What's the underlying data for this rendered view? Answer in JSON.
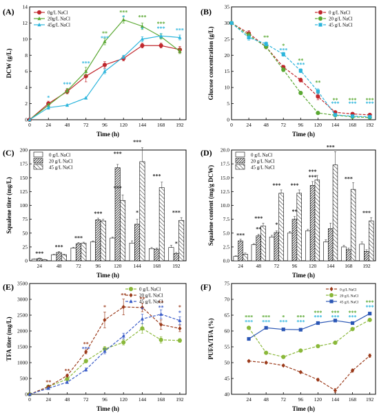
{
  "chart_data": [
    {
      "panel": "(A)",
      "type": "line",
      "xlabel": "Time (h)",
      "ylabel": "DCW (g/L)",
      "x": [
        0,
        24,
        48,
        72,
        96,
        120,
        144,
        168,
        192
      ],
      "xlim": [
        0,
        200
      ],
      "ylim": [
        0,
        14
      ],
      "yticks": [
        0,
        2,
        4,
        6,
        8,
        10,
        12,
        14
      ],
      "legend_position": "top-left",
      "series": [
        {
          "name": "0g/L NaCl",
          "color": "#c0272d",
          "marker": "circle",
          "values": [
            0,
            2.0,
            3.5,
            5.4,
            6.8,
            7.6,
            9.2,
            9.2,
            8.7
          ],
          "err": [
            0,
            0.3,
            0.3,
            0.7,
            0.4,
            0.3,
            0.3,
            0.3,
            0.4
          ]
        },
        {
          "name": "20g/L NaCl",
          "color": "#5aa832",
          "marker": "triangle",
          "values": [
            0,
            1.8,
            3.6,
            6.0,
            9.7,
            12.4,
            11.6,
            10.3,
            8.5
          ],
          "err": [
            0,
            0.2,
            0.3,
            0.5,
            0.4,
            0.4,
            0.4,
            0.3,
            0.3
          ]
        },
        {
          "name": "45g/L NaCl",
          "color": "#2cb5dc",
          "marker": "triangle",
          "values": [
            0,
            1.5,
            1.8,
            2.7,
            6.0,
            7.8,
            10.0,
            10.4,
            10.2
          ],
          "err": [
            0,
            0.2,
            0.1,
            0.1,
            0.3,
            0.2,
            0.3,
            0.3,
            0.3
          ]
        }
      ],
      "annotations": [
        {
          "x": 24,
          "y": 2.5,
          "text": "*",
          "color": "#2cb5dc"
        },
        {
          "x": 48,
          "y": 4.2,
          "text": "***",
          "color": "#2cb5dc"
        },
        {
          "x": 72,
          "y": 6.8,
          "text": "***",
          "color": "#2cb5dc"
        },
        {
          "x": 96,
          "y": 10.5,
          "text": "**",
          "color": "#5aa832"
        },
        {
          "x": 96,
          "y": 9.9,
          "text": "***",
          "color": "#2cb5dc"
        },
        {
          "x": 120,
          "y": 13.1,
          "text": "***",
          "color": "#5aa832"
        },
        {
          "x": 120,
          "y": 12.5,
          "text": "*",
          "color": "#2cb5dc"
        },
        {
          "x": 144,
          "y": 12.5,
          "text": "***",
          "color": "#5aa832"
        },
        {
          "x": 144,
          "y": 11.0,
          "text": "*",
          "color": "#2cb5dc"
        },
        {
          "x": 168,
          "y": 11.7,
          "text": "***",
          "color": "#5aa832"
        },
        {
          "x": 168,
          "y": 11.1,
          "text": "***",
          "color": "#2cb5dc"
        },
        {
          "x": 192,
          "y": 10.9,
          "text": "***",
          "color": "#2cb5dc"
        }
      ]
    },
    {
      "panel": "(B)",
      "type": "line",
      "xlabel": "Time (h)",
      "ylabel": "Glucose concentration (g/L)",
      "x": [
        0,
        24,
        48,
        72,
        96,
        120,
        144,
        168,
        192
      ],
      "xlim": [
        0,
        200
      ],
      "ylim": [
        0,
        35
      ],
      "yticks": [
        0,
        5,
        10,
        15,
        20,
        25,
        30,
        35
      ],
      "legend_position": "top-right",
      "series": [
        {
          "name": "0 g/L NaCl",
          "color": "#c0272d",
          "marker": "circle",
          "dashed": true,
          "values": [
            30,
            26.8,
            22.6,
            16.3,
            12.3,
            7.2,
            2.3,
            1.8,
            1.5
          ],
          "err": [
            0,
            0.8,
            0.6,
            0.6,
            0.6,
            1.0,
            0.3,
            0.3,
            0.2
          ]
        },
        {
          "name": "20 g/L NaCl",
          "color": "#5aa832",
          "marker": "circle",
          "dashed": true,
          "values": [
            30,
            26.2,
            22.6,
            15.5,
            8.3,
            2.1,
            1.4,
            0.9,
            0.7
          ],
          "err": [
            0,
            0.8,
            0.6,
            0.6,
            0.5,
            0.3,
            0.2,
            0.2,
            0.2
          ]
        },
        {
          "name": "45 g/L NaCl",
          "color": "#2cb5dc",
          "marker": "square",
          "dashed": true,
          "values": [
            30,
            25.5,
            23.5,
            20.3,
            15.2,
            8.8,
            1.5,
            1.1,
            0.9
          ],
          "err": [
            0,
            0.8,
            0.6,
            0.6,
            0.6,
            0.8,
            0.2,
            0.2,
            0.2
          ]
        }
      ],
      "annotations": [
        {
          "x": 48,
          "y": 25.0,
          "text": "**",
          "color": "#5aa832"
        },
        {
          "x": 72,
          "y": 21.0,
          "text": "***",
          "color": "#2cb5dc"
        },
        {
          "x": 72,
          "y": 22.4,
          "text": "*",
          "color": "#5aa832"
        },
        {
          "x": 96,
          "y": 16.5,
          "text": "***",
          "color": "#2cb5dc"
        },
        {
          "x": 96,
          "y": 17.8,
          "text": "**",
          "color": "#5aa832"
        },
        {
          "x": 120,
          "y": 11.0,
          "text": "**",
          "color": "#5aa832"
        },
        {
          "x": 144,
          "y": 5.5,
          "text": "**",
          "color": "#5aa832"
        },
        {
          "x": 144,
          "y": 4.5,
          "text": "***",
          "color": "#2cb5dc"
        },
        {
          "x": 168,
          "y": 5.5,
          "text": "***",
          "color": "#5aa832"
        },
        {
          "x": 168,
          "y": 4.5,
          "text": "***",
          "color": "#2cb5dc"
        },
        {
          "x": 192,
          "y": 5.5,
          "text": "***",
          "color": "#5aa832"
        },
        {
          "x": 192,
          "y": 4.5,
          "text": "***",
          "color": "#2cb5dc"
        }
      ]
    },
    {
      "panel": "(C)",
      "type": "bar",
      "xlabel": "Time (h)",
      "ylabel": "Squalene titer (mg/L)",
      "categories": [
        "24",
        "48",
        "72",
        "96",
        "120",
        "144",
        "168",
        "192"
      ],
      "ylim": [
        0,
        200
      ],
      "yticks": [
        0,
        25,
        50,
        75,
        100,
        125,
        150,
        175,
        200
      ],
      "legend_position": "top-left",
      "series": [
        {
          "name": "0 g/L NaCl",
          "pattern": "white",
          "values": [
            3,
            11,
            23,
            34,
            41,
            32,
            22,
            24
          ],
          "err": [
            0.5,
            1,
            1.5,
            2,
            2,
            4,
            2,
            4
          ]
        },
        {
          "name": "20 g/L NaCl",
          "pattern": "dense",
          "values": [
            4,
            15,
            31,
            74,
            168,
            66,
            21,
            13
          ],
          "err": [
            1,
            1.5,
            2,
            3,
            6,
            9,
            2,
            2
          ]
        },
        {
          "name": "45 g/L NaCl",
          "pattern": "hatch",
          "values": [
            2,
            11,
            32,
            72,
            109,
            179,
            132,
            73
          ],
          "err": [
            0.5,
            1,
            1.5,
            3,
            10,
            25,
            10,
            5
          ]
        }
      ],
      "annotations": [
        {
          "cat": 0,
          "y": 10,
          "text": "***"
        },
        {
          "cat": 1,
          "y": 22,
          "text": "***"
        },
        {
          "cat": 2,
          "y": 38,
          "text": "***"
        },
        {
          "cat": 3,
          "y": 82,
          "text": "***"
        },
        {
          "cat": 4,
          "y": 190,
          "text": "***"
        },
        {
          "cat": 4,
          "y": 128,
          "text": "***"
        },
        {
          "cat": 5,
          "y": 84,
          "text": "*"
        },
        {
          "cat": 5,
          "y": 211,
          "text": "***"
        },
        {
          "cat": 6,
          "y": 150,
          "text": "***"
        },
        {
          "cat": 7,
          "y": 84,
          "text": "***"
        },
        {
          "cat": 7,
          "y": 28,
          "text": "*"
        }
      ]
    },
    {
      "panel": "(D)",
      "type": "bar",
      "xlabel": "Time (h)",
      "ylabel": "Squalene content (mg/g DCW)",
      "categories": [
        "24",
        "48",
        "72",
        "96",
        "120",
        "144",
        "168",
        "192"
      ],
      "ylim": [
        0,
        20
      ],
      "yticks": [
        0,
        2.5,
        5.0,
        7.5,
        10.0,
        12.5,
        15.0,
        17.5,
        20.0
      ],
      "legend_position": "top-left",
      "series": [
        {
          "name": "0 g/L NaCl",
          "pattern": "white",
          "values": [
            0.8,
            2.9,
            4.3,
            5.0,
            5.4,
            3.4,
            2.5,
            3.0
          ],
          "err": [
            0.1,
            0.2,
            0.3,
            0.3,
            0.3,
            0.4,
            0.3,
            0.4
          ]
        },
        {
          "name": "20 g/L NaCl",
          "pattern": "dense",
          "values": [
            3.6,
            4.5,
            5.1,
            7.5,
            13.6,
            5.8,
            2.0,
            1.7
          ],
          "err": [
            0.3,
            0.3,
            0.3,
            0.5,
            0.7,
            1.0,
            0.3,
            0.3
          ]
        },
        {
          "name": "45 g/L NaCl",
          "pattern": "hatch",
          "values": [
            1.2,
            6.3,
            12.2,
            12.2,
            14.6,
            17.3,
            12.9,
            7.2
          ],
          "err": [
            0.2,
            0.5,
            0.6,
            0.6,
            0.8,
            2.4,
            1.2,
            0.6
          ]
        }
      ],
      "annotations": [
        {
          "cat": 0,
          "y": 4.3,
          "text": "***"
        },
        {
          "cat": 1,
          "y": 5.4,
          "text": "**"
        },
        {
          "cat": 1,
          "y": 7.3,
          "text": "***"
        },
        {
          "cat": 2,
          "y": 6.2,
          "text": "*"
        },
        {
          "cat": 2,
          "y": 13.3,
          "text": "***"
        },
        {
          "cat": 3,
          "y": 8.6,
          "text": "**"
        },
        {
          "cat": 3,
          "y": 13.3,
          "text": "***"
        },
        {
          "cat": 4,
          "y": 14.8,
          "text": "***"
        },
        {
          "cat": 4,
          "y": 15.8,
          "text": "***"
        },
        {
          "cat": 5,
          "y": 20.2,
          "text": "***"
        },
        {
          "cat": 6,
          "y": 14.5,
          "text": "***"
        },
        {
          "cat": 7,
          "y": 8.3,
          "text": "***"
        }
      ]
    },
    {
      "panel": "(E)",
      "type": "line",
      "xlabel": "Time (h)",
      "ylabel": "TFA titer (mg/L)",
      "x": [
        0,
        24,
        48,
        72,
        96,
        120,
        144,
        168,
        192
      ],
      "xlim": [
        0,
        200
      ],
      "ylim": [
        0,
        3500
      ],
      "yticks": [
        0,
        500,
        1000,
        1500,
        2000,
        2500,
        3000,
        3500
      ],
      "legend_position": "top-right",
      "series": [
        {
          "name": "0 g/L NaCl",
          "color": "#8ab83a",
          "marker": "circle",
          "dashed": true,
          "values": [
            0,
            240,
            480,
            1050,
            1430,
            1640,
            2080,
            1720,
            1700
          ],
          "err": [
            0,
            30,
            40,
            60,
            80,
            80,
            150,
            100,
            60
          ]
        },
        {
          "name": "20 g/L NaCl",
          "color": "#9b3a1a",
          "marker": "diamond",
          "dashed": true,
          "values": [
            0,
            240,
            590,
            1340,
            2350,
            2760,
            2740,
            2200,
            2080
          ],
          "err": [
            0,
            30,
            40,
            60,
            250,
            250,
            130,
            150,
            100
          ]
        },
        {
          "name": "45 g/L NaCl",
          "color": "#3a5cc8",
          "marker": "triangle",
          "dashed": true,
          "values": [
            0,
            190,
            380,
            780,
            1360,
            1840,
            2380,
            2530,
            2330
          ],
          "err": [
            0,
            30,
            30,
            50,
            80,
            90,
            150,
            140,
            120
          ]
        }
      ],
      "annotations": [
        {
          "x": 24,
          "y": 330,
          "text": "**",
          "color": "#9b3a1a"
        },
        {
          "x": 48,
          "y": 690,
          "text": "**",
          "color": "#9b3a1a"
        },
        {
          "x": 72,
          "y": 1530,
          "text": "**",
          "color": "#9b3a1a"
        },
        {
          "x": 72,
          "y": 1380,
          "text": "***",
          "color": "#3a5cc8"
        },
        {
          "x": 96,
          "y": 2700,
          "text": "*",
          "color": "#9b3a1a"
        },
        {
          "x": 120,
          "y": 3080,
          "text": "**",
          "color": "#9b3a1a"
        },
        {
          "x": 144,
          "y": 2960,
          "text": "**",
          "color": "#9b3a1a"
        },
        {
          "x": 144,
          "y": 2630,
          "text": "*",
          "color": "#3a5cc8"
        },
        {
          "x": 168,
          "y": 2840,
          "text": "**",
          "color": "#9b3a1a"
        },
        {
          "x": 168,
          "y": 2690,
          "text": "**",
          "color": "#3a5cc8"
        },
        {
          "x": 192,
          "y": 2700,
          "text": "*",
          "color": "#9b3a1a"
        },
        {
          "x": 192,
          "y": 2520,
          "text": "*",
          "color": "#3a5cc8"
        }
      ]
    },
    {
      "panel": "(F)",
      "type": "line",
      "xlabel": "Time (h)",
      "ylabel": "PUFA/TFA (%)",
      "x": [
        24,
        48,
        72,
        96,
        120,
        144,
        168,
        192
      ],
      "xlim": [
        0,
        200
      ],
      "ylim": [
        40,
        75
      ],
      "yticks": [
        40,
        45,
        50,
        55,
        60,
        65,
        70,
        75
      ],
      "legend_position": "top-right",
      "series": [
        {
          "name": "0 g/L NaCl",
          "color": "#9b3a1a",
          "marker": "diamond",
          "dashed": true,
          "values": [
            50.5,
            50.0,
            49.1,
            47.0,
            44.6,
            41.2,
            47.5,
            52.2
          ],
          "err": [
            0.3,
            0.3,
            0.3,
            0.3,
            0.4,
            0.6,
            0.5,
            0.5
          ]
        },
        {
          "name": "20 g/L NaCl",
          "color": "#8ab83a",
          "marker": "circle",
          "dashed": true,
          "values": [
            61.0,
            53.1,
            51.8,
            53.8,
            55.2,
            56.3,
            60.6,
            63.5
          ],
          "err": [
            0.3,
            0.3,
            0.3,
            0.3,
            0.3,
            0.4,
            0.4,
            0.4
          ]
        },
        {
          "name": "45 g/L NaCl",
          "color": "#2a56b5",
          "marker": "square",
          "dashed": false,
          "values": [
            57.5,
            61.0,
            60.5,
            60.4,
            62.5,
            63.3,
            62.5,
            65.5
          ],
          "err": [
            0.3,
            0.4,
            0.3,
            0.3,
            0.4,
            0.3,
            0.3,
            0.4
          ]
        }
      ],
      "annotations": [
        {
          "x": 24,
          "y": 63.8,
          "text": "***",
          "color": "#5aa832"
        },
        {
          "x": 24,
          "y": 62.3,
          "text": "***",
          "color": "#2cb5dc"
        },
        {
          "x": 48,
          "y": 63.8,
          "text": "***",
          "color": "#5aa832"
        },
        {
          "x": 48,
          "y": 62.3,
          "text": "***",
          "color": "#2cb5dc"
        },
        {
          "x": 72,
          "y": 63.8,
          "text": "*",
          "color": "#5aa832"
        },
        {
          "x": 72,
          "y": 62.3,
          "text": "***",
          "color": "#2cb5dc"
        },
        {
          "x": 96,
          "y": 63.8,
          "text": "***",
          "color": "#5aa832"
        },
        {
          "x": 96,
          "y": 62.3,
          "text": "***",
          "color": "#2cb5dc"
        },
        {
          "x": 120,
          "y": 65.2,
          "text": "***",
          "color": "#5aa832"
        },
        {
          "x": 120,
          "y": 63.8,
          "text": "***",
          "color": "#2cb5dc"
        },
        {
          "x": 144,
          "y": 65.2,
          "text": "***",
          "color": "#5aa832"
        },
        {
          "x": 144,
          "y": 63.8,
          "text": "***",
          "color": "#2cb5dc"
        },
        {
          "x": 168,
          "y": 65.2,
          "text": "***",
          "color": "#5aa832"
        },
        {
          "x": 168,
          "y": 63.8,
          "text": "***",
          "color": "#2cb5dc"
        },
        {
          "x": 192,
          "y": 68.5,
          "text": "***",
          "color": "#5aa832"
        },
        {
          "x": 192,
          "y": 67.0,
          "text": "***",
          "color": "#2cb5dc"
        }
      ]
    }
  ]
}
